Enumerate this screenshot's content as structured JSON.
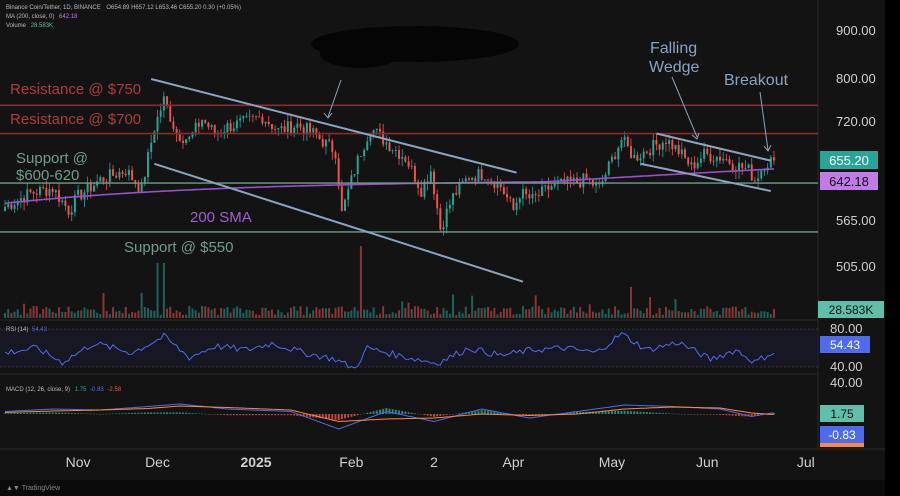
{
  "header": {
    "symbol": "Binance Coin/Tether, 1D, BINANCE",
    "ohlc": "O654.89  H657.12  L653.46  C655.20  0.30 (+0.05%)",
    "ma_label": "MA (200, close, 0)",
    "ma_value": "642.18",
    "volume_label": "Volume",
    "volume_value": "28.583K"
  },
  "footer": {
    "brand": "TradingView"
  },
  "colors": {
    "background": "#131313",
    "up": "#26a69a",
    "down": "#ef5350",
    "sma": "#9c4dcc",
    "rsi": "#4f6bed",
    "resistance": "#8b2a2a",
    "support": "#6f9d8a",
    "wedge": "#8aa4bf"
  },
  "chart_data": [
    {
      "type": "candlestick",
      "title": "Binance Coin/Tether, 1D, BINANCE",
      "y_ticks": [
        "900.00",
        "800.00",
        "720.00",
        "565.00",
        "505.00"
      ],
      "y_tick_values": [
        900,
        800,
        720,
        565,
        505
      ],
      "y_scale": "log",
      "x_ticks": [
        "Nov",
        "Dec",
        "2025",
        "Feb",
        "2",
        "Apr",
        "May",
        "Jun",
        "Jul"
      ],
      "x_tick_index": [
        23,
        48,
        79,
        109,
        135,
        160,
        191,
        221,
        252
      ],
      "price_path": [
        [
          0,
          585
        ],
        [
          8,
          605
        ],
        [
          15,
          612
        ],
        [
          20,
          580
        ],
        [
          23,
          600
        ],
        [
          30,
          625
        ],
        [
          38,
          640
        ],
        [
          43,
          610
        ],
        [
          47,
          710
        ],
        [
          50,
          760
        ],
        [
          54,
          700
        ],
        [
          58,
          690
        ],
        [
          62,
          725
        ],
        [
          66,
          700
        ],
        [
          70,
          712
        ],
        [
          76,
          720
        ],
        [
          81,
          730
        ],
        [
          86,
          705
        ],
        [
          92,
          715
        ],
        [
          97,
          700
        ],
        [
          104,
          670
        ],
        [
          106,
          575
        ],
        [
          110,
          640
        ],
        [
          112,
          670
        ],
        [
          115,
          710
        ],
        [
          120,
          685
        ],
        [
          126,
          660
        ],
        [
          131,
          610
        ],
        [
          134,
          640
        ],
        [
          137,
          555
        ],
        [
          141,
          600
        ],
        [
          146,
          630
        ],
        [
          151,
          635
        ],
        [
          156,
          615
        ],
        [
          160,
          580
        ],
        [
          162,
          605
        ],
        [
          166,
          595
        ],
        [
          172,
          615
        ],
        [
          178,
          620
        ],
        [
          183,
          625
        ],
        [
          187,
          612
        ],
        [
          190,
          645
        ],
        [
          194,
          690
        ],
        [
          198,
          660
        ],
        [
          203,
          675
        ],
        [
          208,
          690
        ],
        [
          212,
          670
        ],
        [
          216,
          645
        ],
        [
          220,
          665
        ],
        [
          226,
          660
        ],
        [
          230,
          648
        ],
        [
          234,
          640
        ],
        [
          236,
          625
        ],
        [
          239,
          650
        ],
        [
          241,
          655.2
        ]
      ],
      "last_price": "655.20",
      "series": [
        {
          "name": "MA (200, close, 0)",
          "value": "642.18"
        },
        {
          "name": "Volume",
          "value": "28.583K"
        }
      ],
      "annotations": [
        {
          "text": "Resistance @ $750",
          "price": 750
        },
        {
          "text": "Resistance @ $700",
          "price": 700
        },
        {
          "text": "Support @",
          "text2": "$600-620",
          "price": 620
        },
        {
          "text": "Support @ $550",
          "price": 550
        },
        {
          "text": "200 SMA"
        },
        {
          "text": "Falling",
          "text2": "Wedge"
        },
        {
          "text": "Breakout"
        }
      ],
      "trendlines": [
        {
          "name": "upper-channel",
          "from": [
            46,
            800
          ],
          "to": [
            161,
            636
          ]
        },
        {
          "name": "lower-channel",
          "from": [
            47,
            650
          ],
          "to": [
            163,
            487
          ]
        },
        {
          "name": "wedge-top",
          "from": [
            205,
            700
          ],
          "to": [
            241,
            655
          ]
        },
        {
          "name": "wedge-bottom",
          "from": [
            200,
            650
          ],
          "to": [
            241,
            608
          ]
        }
      ]
    },
    {
      "type": "line",
      "title": "RSI (14)",
      "value": "54.43",
      "y_ticks": [
        "80.00",
        "40.00"
      ],
      "y_tick_values": [
        80,
        40
      ],
      "ylim": [
        30,
        85
      ],
      "path": [
        [
          0,
          55
        ],
        [
          10,
          60
        ],
        [
          18,
          45
        ],
        [
          28,
          65
        ],
        [
          40,
          55
        ],
        [
          50,
          72
        ],
        [
          58,
          50
        ],
        [
          66,
          62
        ],
        [
          76,
          58
        ],
        [
          84,
          65
        ],
        [
          94,
          55
        ],
        [
          104,
          48
        ],
        [
          110,
          38
        ],
        [
          114,
          60
        ],
        [
          124,
          52
        ],
        [
          136,
          44
        ],
        [
          146,
          60
        ],
        [
          156,
          52
        ],
        [
          166,
          58
        ],
        [
          176,
          60
        ],
        [
          186,
          55
        ],
        [
          194,
          75
        ],
        [
          202,
          58
        ],
        [
          212,
          66
        ],
        [
          222,
          48
        ],
        [
          230,
          58
        ],
        [
          236,
          45
        ],
        [
          241,
          54.43
        ]
      ]
    },
    {
      "type": "histogram",
      "title": "MACD (12, 26, close, 9)",
      "values": [
        "1.75",
        "-0.83",
        "-2.58"
      ],
      "value_macd": "1.75",
      "value_signal": "-0.83",
      "y_ticks": [
        "40.00"
      ],
      "y_tick_values": [
        40
      ],
      "ylim": [
        -45,
        45
      ],
      "macd_path": [
        [
          0,
          5
        ],
        [
          15,
          10
        ],
        [
          30,
          8
        ],
        [
          45,
          15
        ],
        [
          55,
          20
        ],
        [
          70,
          10
        ],
        [
          90,
          5
        ],
        [
          105,
          -30
        ],
        [
          120,
          5
        ],
        [
          135,
          -15
        ],
        [
          150,
          10
        ],
        [
          165,
          -8
        ],
        [
          180,
          5
        ],
        [
          195,
          18
        ],
        [
          210,
          15
        ],
        [
          225,
          10
        ],
        [
          235,
          -5
        ],
        [
          241,
          1.75
        ]
      ],
      "signal_path": [
        [
          0,
          3
        ],
        [
          15,
          6
        ],
        [
          30,
          8
        ],
        [
          45,
          11
        ],
        [
          55,
          16
        ],
        [
          70,
          13
        ],
        [
          90,
          8
        ],
        [
          105,
          -15
        ],
        [
          120,
          -10
        ],
        [
          135,
          -8
        ],
        [
          150,
          0
        ],
        [
          165,
          -3
        ],
        [
          180,
          0
        ],
        [
          195,
          10
        ],
        [
          210,
          14
        ],
        [
          225,
          12
        ],
        [
          235,
          2
        ],
        [
          241,
          -0.83
        ]
      ]
    }
  ]
}
